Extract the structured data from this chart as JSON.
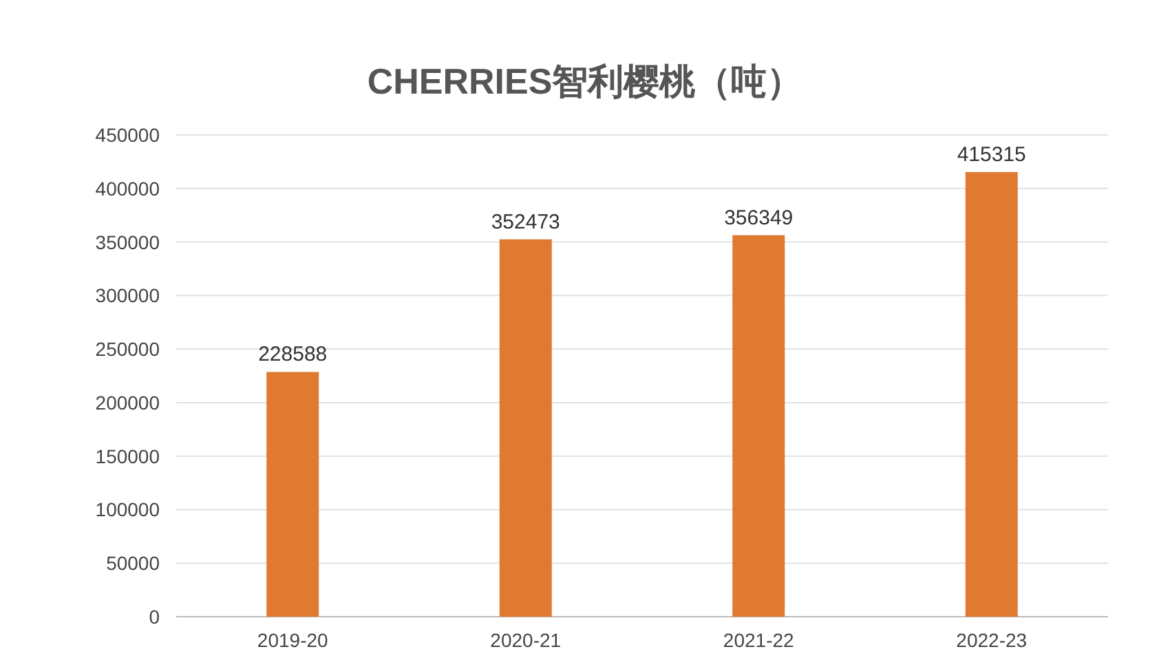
{
  "chart_data": {
    "type": "bar",
    "title": "CHERRIES智利樱桃（吨）",
    "categories": [
      "2019-20",
      "2020-21",
      "2021-22",
      "2022-23"
    ],
    "values": [
      228588,
      352473,
      356349,
      415315
    ],
    "color": "#e07a30",
    "ylim": [
      0,
      450000
    ],
    "yticks": [
      0,
      50000,
      100000,
      150000,
      200000,
      250000,
      300000,
      350000,
      400000,
      450000
    ],
    "grid": "y",
    "data_labels": true
  }
}
